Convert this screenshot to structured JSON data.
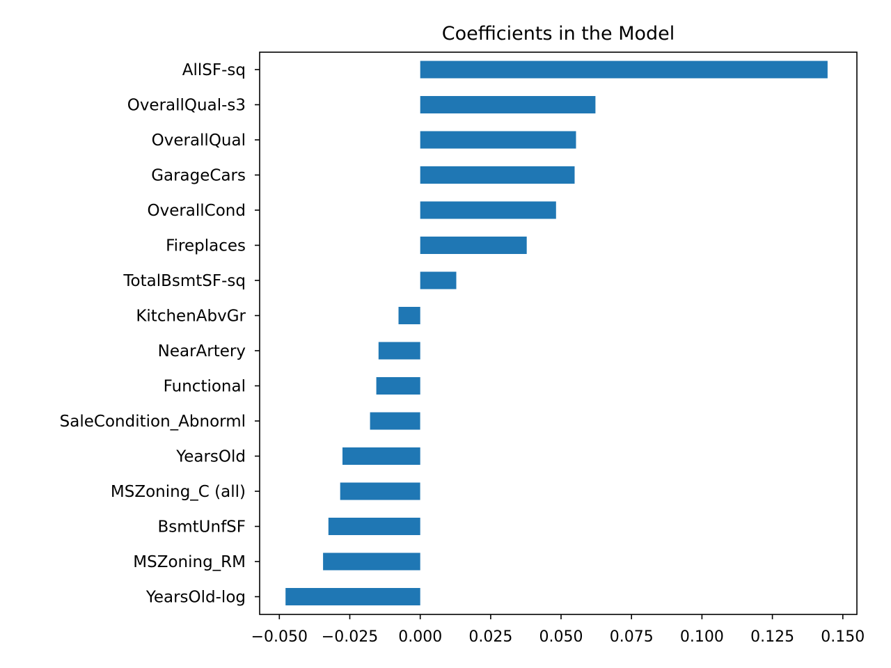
{
  "chart_data": {
    "type": "bar",
    "orientation": "horizontal",
    "title": "Coefficients in the Model",
    "xlabel": "",
    "ylabel": "",
    "xlim": [
      -0.057,
      0.155
    ],
    "grid": false,
    "legend": "none",
    "bar_color": "#1f77b4",
    "categories": [
      "AllSF-sq",
      "OverallQual-s3",
      "OverallQual",
      "GarageCars",
      "OverallCond",
      "Fireplaces",
      "TotalBsmtSF-sq",
      "KitchenAbvGr",
      "NearArtery",
      "Functional",
      "SaleCondition_Abnorml",
      "YearsOld",
      "MSZoning_C (all)",
      "BsmtUnfSF",
      "MSZoning_RM",
      "YearsOld-log"
    ],
    "values": [
      0.1446,
      0.0622,
      0.0553,
      0.0548,
      0.0482,
      0.0378,
      0.0128,
      -0.0077,
      -0.0148,
      -0.0156,
      -0.0178,
      -0.0276,
      -0.0284,
      -0.0326,
      -0.0345,
      -0.0478
    ],
    "xticks": [
      -0.05,
      -0.025,
      0.0,
      0.025,
      0.05,
      0.075,
      0.1,
      0.125,
      0.15
    ],
    "xtick_labels": [
      "−0.050",
      "−0.025",
      "0.000",
      "0.025",
      "0.050",
      "0.075",
      "0.100",
      "0.125",
      "0.150"
    ]
  }
}
